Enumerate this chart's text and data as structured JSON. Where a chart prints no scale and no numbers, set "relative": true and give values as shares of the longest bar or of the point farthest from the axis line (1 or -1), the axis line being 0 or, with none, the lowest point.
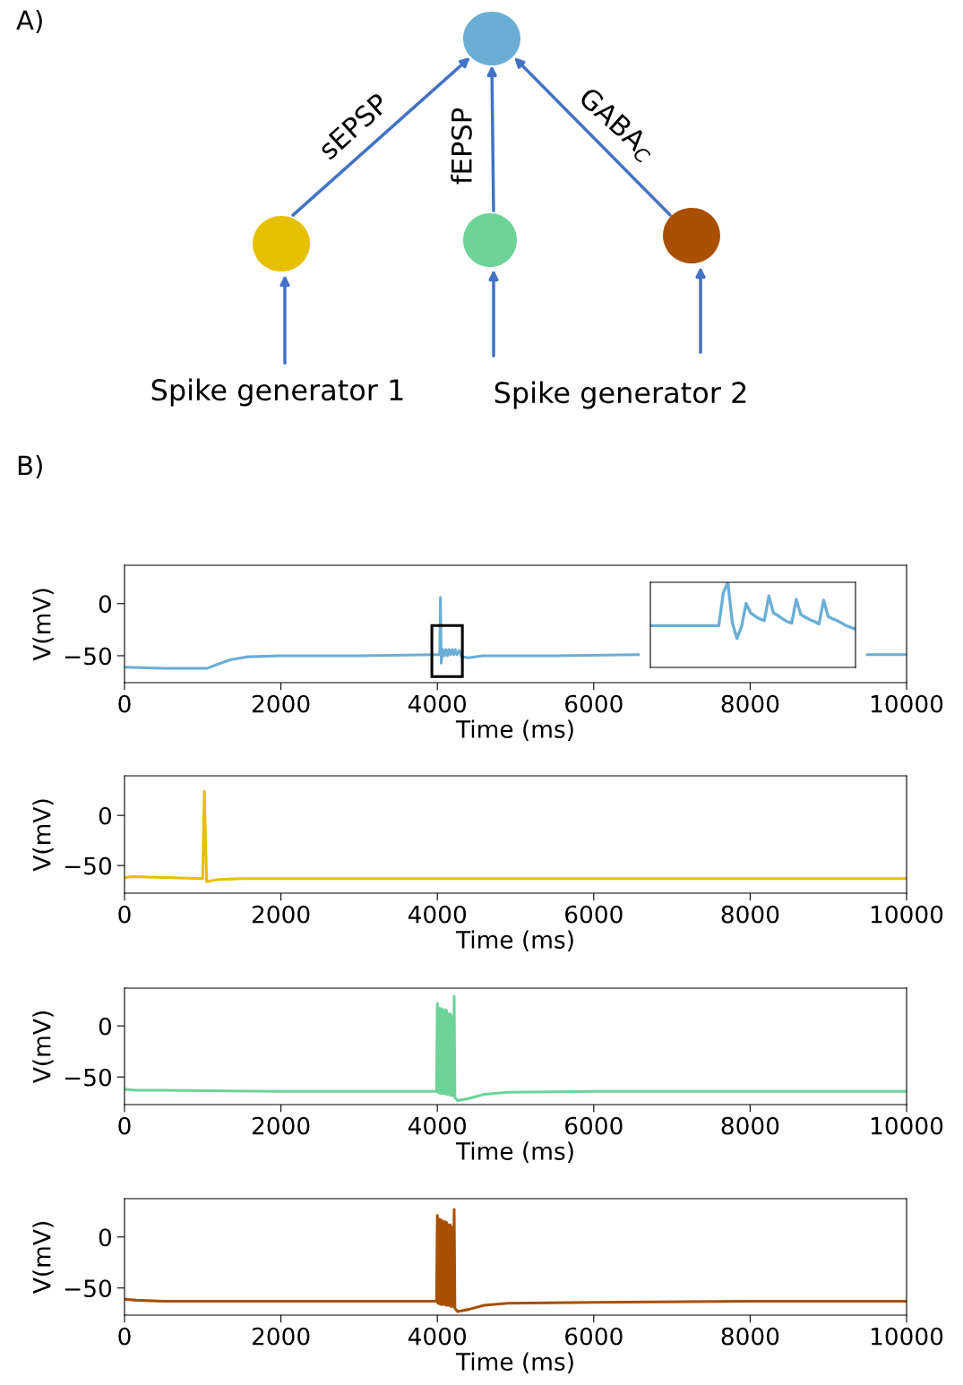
{
  "chart_data": [
    {
      "type": "other",
      "title": "A)",
      "annotations": [
        "sEPSP",
        "fEPSP",
        "GABA$_{C}$",
        "Spike generator 1",
        "Spike generator 2"
      ]
    },
    {
      "type": "line",
      "title": "B)",
      "xlabel": "Time (ms)",
      "ylabel": "V(mV)",
      "xlim": [
        0,
        10000
      ],
      "ylim": [
        -75.8,
        36.7
      ],
      "xticks": [
        0,
        2000,
        4000,
        6000,
        8000,
        10000
      ],
      "yticks": [
        0,
        -50
      ],
      "x": [
        0,
        500,
        1060,
        1200,
        1350,
        1580,
        2000,
        3000,
        4000,
        4030,
        4040,
        4050,
        4070,
        4090,
        4110,
        4130,
        4150,
        4170,
        4190,
        4210,
        4230,
        4250,
        4280,
        4310,
        4400,
        4580,
        5500,
        6570,
        6600,
        9465,
        9500,
        10000
      ],
      "series": [
        {
          "color": "#6aaed6",
          "values": [
            -61,
            -62,
            -62,
            -58,
            -54,
            -51,
            -50,
            -50,
            -49,
            -49,
            6,
            -57,
            -44,
            -50,
            -44,
            -50,
            -44,
            -49,
            -44,
            -49,
            -44,
            -49,
            -45,
            -51,
            -52,
            -50,
            -50,
            -49,
            null,
            null,
            -49,
            -49
          ]
        }
      ]
    },
    {
      "type": "line",
      "relative": true,
      "categories": [
        null,
        null,
        null,
        null,
        null,
        null,
        null,
        null,
        null,
        null,
        null,
        null,
        null,
        null,
        null,
        null,
        null,
        null,
        null,
        null,
        null,
        null,
        null,
        null,
        null,
        null,
        null,
        null,
        null,
        null,
        null,
        null,
        null,
        null,
        null,
        null,
        null,
        null,
        null,
        null,
        null,
        null,
        null,
        null,
        null,
        null
      ],
      "series": [
        {
          "color": "#6aaed6",
          "values": [
            0.49,
            0.49,
            0.49,
            0.49,
            0.49,
            0.49,
            0.49,
            0.49,
            0.49,
            0.49,
            0.49,
            0.49,
            0.49,
            0.49,
            0.49,
            0.49,
            0.875,
            1.0,
            0.52,
            0.34,
            0.48,
            0.75,
            0.64,
            0.6,
            0.57,
            0.55,
            0.84,
            0.64,
            0.61,
            0.57,
            0.54,
            0.52,
            0.8,
            0.62,
            0.59,
            0.56,
            0.54,
            0.51,
            0.79,
            0.6,
            0.57,
            0.55,
            0.52,
            0.49,
            0.47,
            0.45
          ]
        }
      ]
    },
    {
      "type": "line",
      "xlabel": "Time (ms)",
      "ylabel": "V(mV)",
      "xlim": [
        0,
        10000
      ],
      "ylim": [
        -77.6,
        39.5
      ],
      "xticks": [
        0,
        2000,
        4000,
        6000,
        8000,
        10000
      ],
      "yticks": [
        0,
        -50
      ],
      "x": [
        0,
        100,
        500,
        1000,
        1020,
        1050,
        1200,
        1500,
        3000,
        10000
      ],
      "series": [
        {
          "color": "#e6c000",
          "values": [
            -62,
            -61,
            -62,
            -63,
            24,
            -66,
            -64,
            -63,
            -63,
            -63
          ]
        }
      ]
    },
    {
      "type": "line",
      "xlabel": "Time (ms)",
      "ylabel": "V(mV)",
      "xlim": [
        0,
        10000
      ],
      "ylim": [
        -77,
        37
      ],
      "xticks": [
        0,
        2000,
        4000,
        6000,
        8000,
        10000
      ],
      "yticks": [
        0,
        -50
      ],
      "x": [
        0,
        150,
        500,
        2000,
        3990,
        4000,
        4008,
        4015,
        4023,
        4030,
        4038,
        4045,
        4053,
        4060,
        4068,
        4075,
        4083,
        4090,
        4098,
        4105,
        4113,
        4120,
        4128,
        4135,
        4143,
        4150,
        4158,
        4165,
        4173,
        4180,
        4188,
        4195,
        4203,
        4215,
        4225,
        4260,
        4400,
        4600,
        4900,
        6000,
        8000,
        10000
      ],
      "series": [
        {
          "color": "#6dd398",
          "values": [
            -62,
            -63,
            -63,
            -64,
            -64,
            22,
            -65,
            18,
            -65,
            17,
            -66,
            17,
            -66,
            16,
            -66,
            16,
            -66,
            15,
            -66,
            16,
            -67,
            15,
            -67,
            12,
            -67,
            10,
            -67,
            12,
            -68,
            10,
            -68,
            9,
            -68,
            29,
            -70,
            -73,
            -71,
            -67,
            -65,
            -64,
            -64,
            -64
          ]
        }
      ]
    },
    {
      "type": "line",
      "xlabel": "Time (ms)",
      "ylabel": "V(mV)",
      "xlim": [
        0,
        10000
      ],
      "ylim": [
        -76.6,
        37.6
      ],
      "xticks": [
        0,
        2000,
        4000,
        6000,
        8000,
        10000
      ],
      "yticks": [
        0,
        -50
      ],
      "x": [
        0,
        150,
        500,
        2000,
        3990,
        4000,
        4008,
        4015,
        4023,
        4030,
        4038,
        4045,
        4053,
        4060,
        4068,
        4075,
        4083,
        4090,
        4098,
        4105,
        4113,
        4120,
        4128,
        4135,
        4143,
        4150,
        4158,
        4165,
        4173,
        4180,
        4188,
        4195,
        4203,
        4215,
        4225,
        4260,
        4400,
        4600,
        4900,
        6000,
        8000,
        10000
      ],
      "series": [
        {
          "color": "#a85000",
          "values": [
            -61,
            -62,
            -63,
            -63,
            -63,
            21,
            -65,
            18,
            -65,
            17,
            -66,
            17,
            -66,
            16,
            -66,
            15,
            -66,
            15,
            -66,
            15,
            -67,
            14,
            -67,
            12,
            -67,
            11,
            -67,
            12,
            -68,
            10,
            -68,
            9,
            -68,
            27,
            -70,
            -73,
            -71,
            -67,
            -65,
            -64,
            -63,
            -63
          ]
        }
      ]
    }
  ]
}
